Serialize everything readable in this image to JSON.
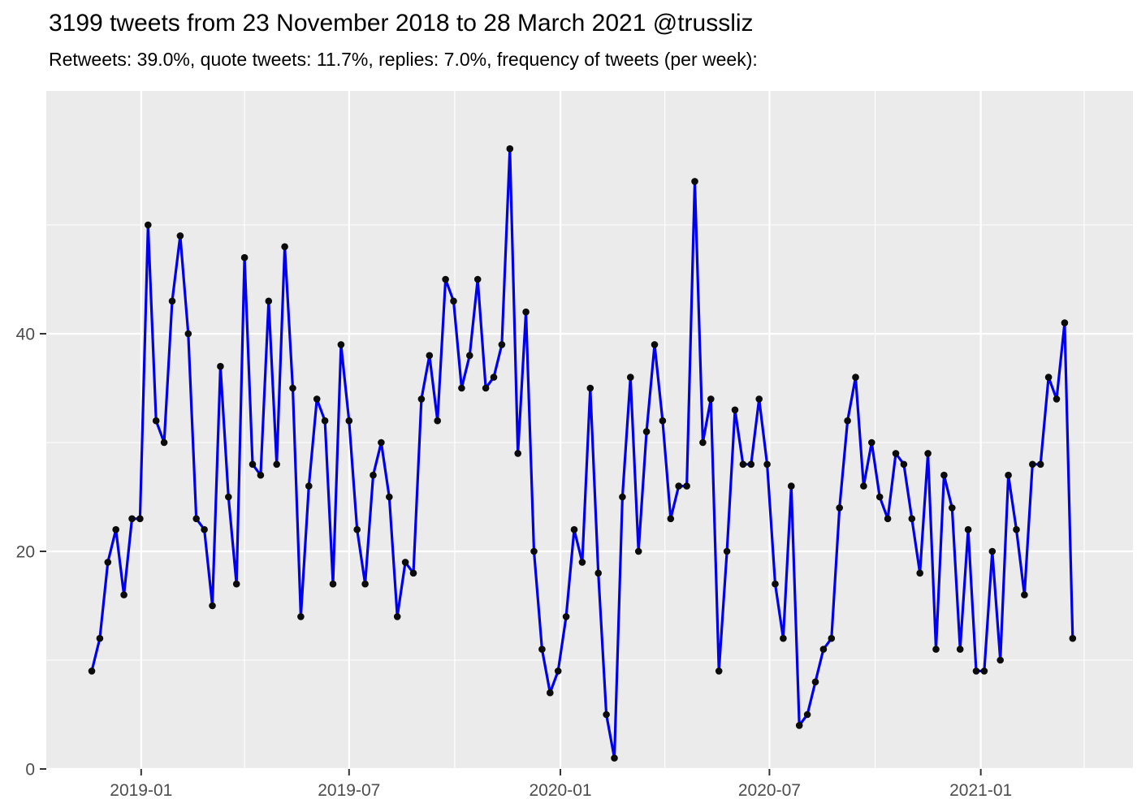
{
  "header": {
    "title": "3199 tweets from 23 November 2018 to 28 March 2021 @trussliz",
    "subtitle": "Retweets: 39.0%, quote tweets: 11.7%, replies: 7.0%, frequency of tweets (per week):"
  },
  "chart_data": {
    "type": "line",
    "title": "3199 tweets from 23 November 2018 to 28 March 2021 @trussliz",
    "subtitle": "Retweets: 39.0%, quote tweets: 11.7%, replies: 7.0%, frequency of tweets (per week):",
    "xlabel": "",
    "ylabel": "",
    "series_name": "tweets per week",
    "start_date": "2018-11-19",
    "end_date": "2021-03-22",
    "interval_days": 7,
    "n_weeks": 123,
    "values": [
      9,
      12,
      19,
      22,
      16,
      23,
      23,
      50,
      32,
      30,
      43,
      49,
      40,
      23,
      22,
      15,
      37,
      25,
      17,
      47,
      28,
      27,
      43,
      28,
      48,
      35,
      14,
      26,
      34,
      32,
      17,
      39,
      32,
      22,
      17,
      27,
      30,
      25,
      14,
      19,
      18,
      34,
      38,
      32,
      45,
      43,
      35,
      38,
      45,
      35,
      36,
      39,
      57,
      29,
      42,
      20,
      11,
      7,
      9,
      14,
      22,
      19,
      35,
      18,
      5,
      1,
      25,
      36,
      20,
      31,
      39,
      32,
      23,
      26,
      26,
      54,
      30,
      34,
      9,
      20,
      33,
      28,
      28,
      34,
      28,
      17,
      12,
      26,
      4,
      5,
      8,
      11,
      12,
      24,
      32,
      36,
      26,
      30,
      25,
      23,
      29,
      28,
      23,
      18,
      29,
      11,
      27,
      24,
      11,
      22,
      9,
      9,
      20,
      10,
      27,
      22,
      16,
      28,
      28,
      36,
      34,
      41,
      12
    ],
    "total_tweets": 3199,
    "ylim": [
      0,
      58
    ],
    "y_major_ticks": [
      0,
      20,
      40
    ],
    "y_minor_gridlines": [
      10,
      30,
      50
    ],
    "x_ticks": [
      {
        "label": "2019-01",
        "date": "2019-01-01"
      },
      {
        "label": "2019-07",
        "date": "2019-07-01"
      },
      {
        "label": "2020-01",
        "date": "2020-01-01"
      },
      {
        "label": "2020-07",
        "date": "2020-07-01"
      },
      {
        "label": "2021-01",
        "date": "2021-01-01"
      }
    ],
    "x_minor_gridline_dates": [
      "2019-04-01",
      "2019-10-01",
      "2020-04-01",
      "2020-10-01",
      "2021-04-01"
    ],
    "grid": true,
    "legend": "none",
    "colors": {
      "line": "#0000EE",
      "point": "#0b0b0b",
      "panel_background": "#EBEBEB",
      "gridline": "#FFFFFF",
      "axis_text": "#4d4d4d",
      "tick_mark": "#333333",
      "title_text": "#000000"
    }
  }
}
